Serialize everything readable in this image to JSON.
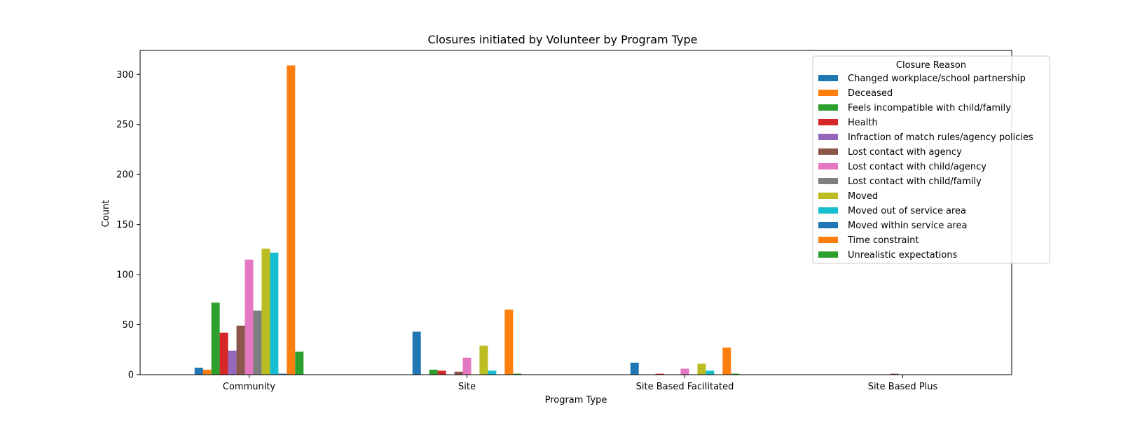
{
  "chart_data": {
    "type": "bar",
    "title": "Closures initiated by Volunteer by Program Type",
    "xlabel": "Program Type",
    "ylabel": "Count",
    "ylim": [
      0,
      324
    ],
    "yticks": [
      0,
      50,
      100,
      150,
      200,
      250,
      300
    ],
    "grid": false,
    "legend_title": "Closure Reason",
    "legend_position": "top-right",
    "categories": [
      "Community",
      "Site",
      "Site Based Facilitated",
      "Site Based Plus"
    ],
    "series": [
      {
        "name": "Changed workplace/school partnership",
        "color": "#1f77b4",
        "values": [
          7,
          43,
          12,
          0
        ]
      },
      {
        "name": "Deceased",
        "color": "#ff7f0e",
        "values": [
          5,
          0,
          0,
          0
        ]
      },
      {
        "name": "Feels incompatible with child/family",
        "color": "#2ca02c",
        "values": [
          72,
          5,
          0,
          0
        ]
      },
      {
        "name": "Health",
        "color": "#d62728",
        "values": [
          42,
          4,
          1,
          0
        ]
      },
      {
        "name": "Infraction of match rules/agency policies",
        "color": "#9467bd",
        "values": [
          24,
          0,
          0,
          0
        ]
      },
      {
        "name": "Lost contact with agency",
        "color": "#8c564b",
        "values": [
          49,
          3,
          0,
          1
        ]
      },
      {
        "name": "Lost contact with child/agency",
        "color": "#e377c2",
        "values": [
          115,
          17,
          6,
          0
        ]
      },
      {
        "name": "Lost contact with child/family",
        "color": "#7f7f7f",
        "values": [
          64,
          0,
          0,
          0
        ]
      },
      {
        "name": "Moved",
        "color": "#bcbd22",
        "values": [
          126,
          29,
          11,
          0
        ]
      },
      {
        "name": "Moved out of service area",
        "color": "#17becf",
        "values": [
          122,
          4,
          4,
          0
        ]
      },
      {
        "name": "Moved within service area",
        "color": "#1f77b4",
        "values": [
          1,
          0,
          0,
          0
        ]
      },
      {
        "name": "Time constraint",
        "color": "#ff7f0e",
        "values": [
          309,
          65,
          27,
          0
        ]
      },
      {
        "name": "Unrealistic expectations",
        "color": "#2ca02c",
        "values": [
          23,
          1,
          1,
          0
        ]
      }
    ]
  }
}
